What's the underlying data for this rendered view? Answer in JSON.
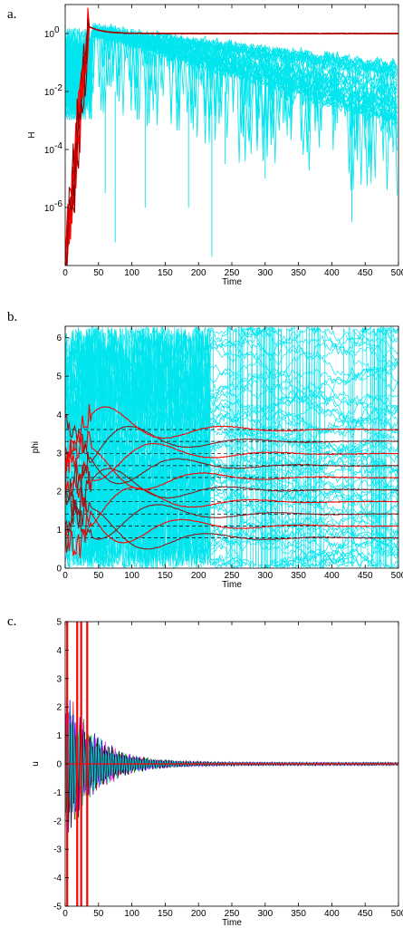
{
  "panels": [
    {
      "letter": "a."
    },
    {
      "letter": "b."
    },
    {
      "letter": "c."
    }
  ],
  "chart_data": [
    {
      "type": "line",
      "xlabel": "Time",
      "ylabel": "H",
      "xlim": [
        0,
        500
      ],
      "ylim_log10": [
        -8,
        1
      ],
      "log_scale_y": true,
      "x_ticks": [
        "0",
        "50",
        "100",
        "150",
        "200",
        "250",
        "300",
        "350",
        "400",
        "450",
        "500"
      ],
      "y_ticks": [
        {
          "exp": "0",
          "value_log10": 0
        },
        {
          "exp": "-2",
          "value_log10": -2
        },
        {
          "exp": "-4",
          "value_log10": -4
        },
        {
          "exp": "-6",
          "value_log10": -6
        }
      ],
      "y_tick_base": "10",
      "series_colors": {
        "cyan": "#00e5ee",
        "red": "#ff0000",
        "darkred": "#8b0000"
      },
      "red_plateau_log10": 0
    },
    {
      "type": "line",
      "xlabel": "Time",
      "ylabel": "phi",
      "xlim": [
        0,
        500
      ],
      "ylim": [
        0,
        6.3
      ],
      "x_ticks": [
        "0",
        "50",
        "100",
        "150",
        "200",
        "250",
        "300",
        "350",
        "400",
        "450",
        "500"
      ],
      "y_ticks": [
        "0",
        "1",
        "2",
        "3",
        "4",
        "5",
        "6"
      ],
      "dashed_reference_levels": [
        0.79,
        1.1,
        1.41,
        1.73,
        2.04,
        2.36,
        2.67,
        2.98,
        3.3,
        3.61
      ],
      "series_colors": {
        "cyan": "#00e5ee",
        "red": "#ff0000",
        "darkred": "#8b1a1a",
        "dashed": "#000000"
      }
    },
    {
      "type": "line",
      "xlabel": "Time",
      "ylabel": "u",
      "xlim": [
        0,
        500
      ],
      "ylim": [
        -5,
        5
      ],
      "x_ticks": [
        "0",
        "50",
        "100",
        "150",
        "200",
        "250",
        "300",
        "350",
        "400",
        "450",
        "500"
      ],
      "y_ticks": [
        "-5",
        "-4",
        "-3",
        "-2",
        "-1",
        "0",
        "1",
        "2",
        "3",
        "4",
        "5"
      ],
      "series_colors": [
        "#ff0000",
        "#0000ff",
        "#00aa00",
        "#ff00ff",
        "#000000",
        "#00cccc"
      ]
    }
  ]
}
